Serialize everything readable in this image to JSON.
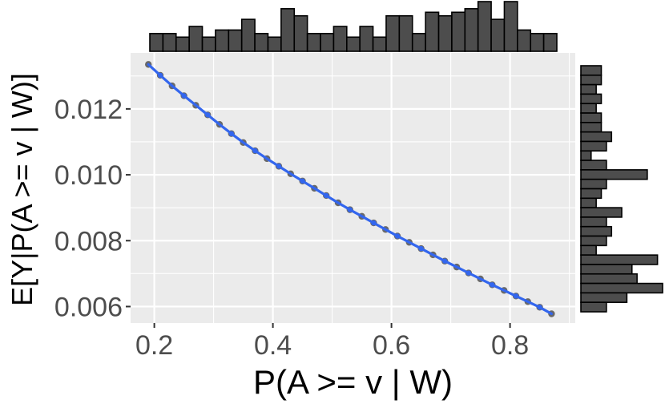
{
  "chart_data": {
    "type": "scatter",
    "title": "",
    "xlabel": "P(A >= v | W)",
    "ylabel": "E[Y|P(A >= v | W)]",
    "xlim": [
      0.16,
      0.91
    ],
    "ylim": [
      0.0055,
      0.0137
    ],
    "x_ticks": [
      0.2,
      0.4,
      0.6,
      0.8
    ],
    "x_tick_labels": [
      "0.2",
      "0.4",
      "0.6",
      "0.8"
    ],
    "y_ticks": [
      0.006,
      0.008,
      0.01,
      0.012
    ],
    "y_tick_labels": [
      "0.006",
      "0.008",
      "0.010",
      "0.012"
    ],
    "grid": true,
    "series": [
      {
        "marker_color": "#696969",
        "line_color": "#3366ee",
        "x": [
          0.19,
          0.21,
          0.23,
          0.25,
          0.27,
          0.29,
          0.31,
          0.33,
          0.35,
          0.37,
          0.39,
          0.41,
          0.43,
          0.45,
          0.47,
          0.49,
          0.51,
          0.53,
          0.55,
          0.57,
          0.59,
          0.61,
          0.63,
          0.65,
          0.67,
          0.69,
          0.71,
          0.73,
          0.75,
          0.77,
          0.79,
          0.81,
          0.83,
          0.85,
          0.87
        ],
        "y": [
          0.01335,
          0.01302,
          0.0127,
          0.0124,
          0.01211,
          0.01182,
          0.01153,
          0.01125,
          0.01098,
          0.01073,
          0.01049,
          0.01026,
          0.01003,
          0.00981,
          0.00959,
          0.00937,
          0.00915,
          0.00894,
          0.00874,
          0.00854,
          0.00834,
          0.00814,
          0.00795,
          0.00776,
          0.00757,
          0.00738,
          0.0072,
          0.00702,
          0.00684,
          0.00666,
          0.00649,
          0.00632,
          0.00615,
          0.00598,
          0.00578
        ]
      }
    ],
    "marginal_x_histogram": {
      "bar_color": "#4d4d4d",
      "counts": [
        5,
        5,
        4,
        7,
        4,
        6,
        6,
        9,
        5,
        4,
        12,
        10,
        5,
        5,
        7,
        4,
        7,
        4,
        10,
        10,
        5,
        11,
        10,
        11,
        12,
        14,
        9,
        14,
        6,
        5,
        5
      ]
    },
    "marginal_y_histogram": {
      "bar_color": "#4d4d4d",
      "counts": [
        4,
        4,
        3,
        4,
        3,
        4,
        4,
        6,
        5,
        2,
        5,
        13,
        5,
        4,
        3,
        8,
        5,
        6,
        5,
        3,
        15,
        10,
        11,
        16,
        9,
        5
      ]
    }
  }
}
